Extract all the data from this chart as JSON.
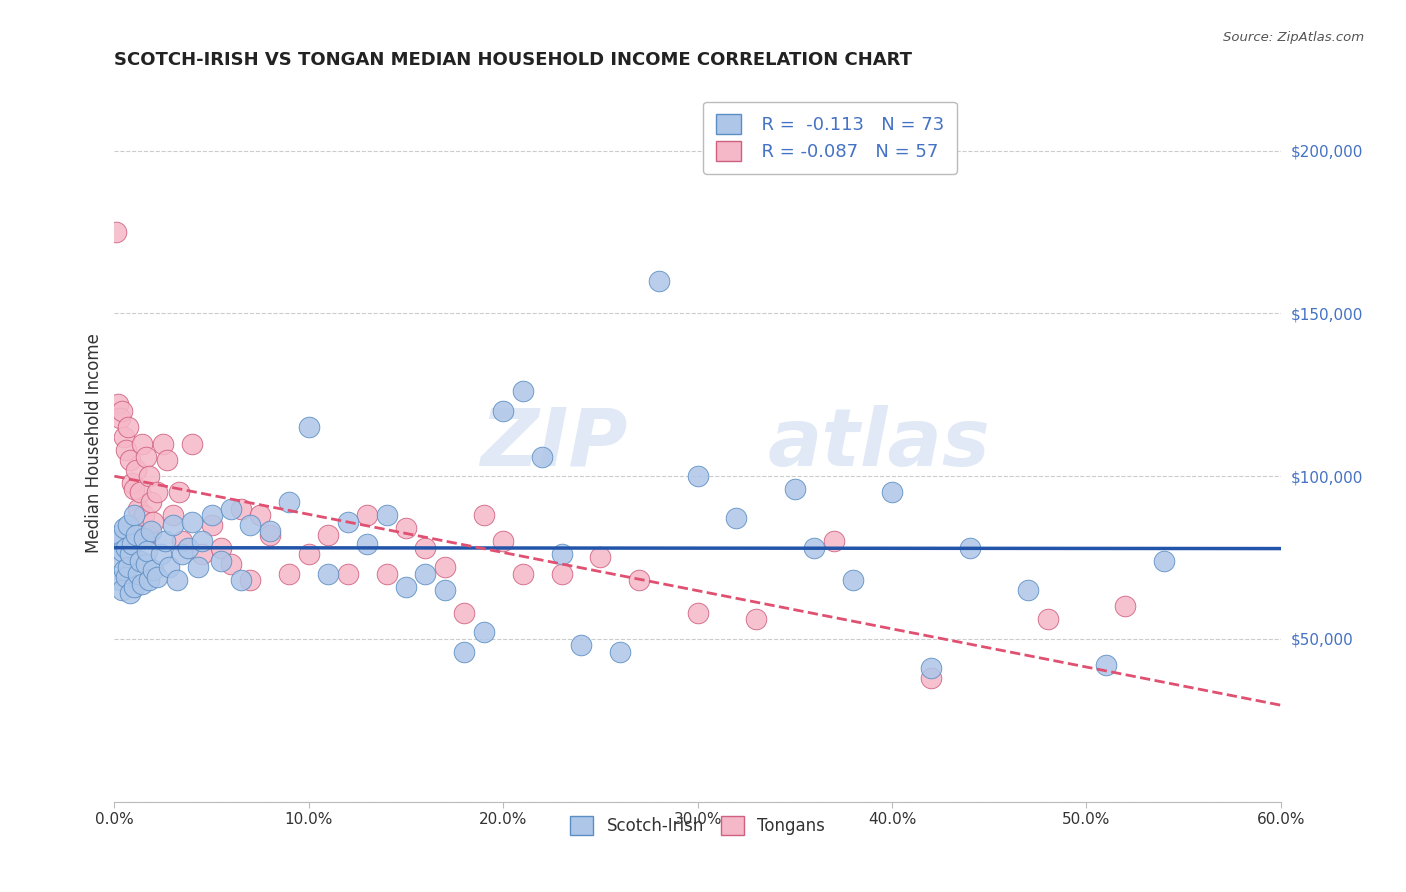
{
  "title": "SCOTCH-IRISH VS TONGAN MEDIAN HOUSEHOLD INCOME CORRELATION CHART",
  "source_text": "Source: ZipAtlas.com",
  "ylabel": "Median Household Income",
  "xlim": [
    0.0,
    0.6
  ],
  "ylim": [
    0,
    220000
  ],
  "yticks": [
    0,
    50000,
    100000,
    150000,
    200000
  ],
  "xtick_labels": [
    "0.0%",
    "10.0%",
    "20.0%",
    "30.0%",
    "40.0%",
    "50.0%",
    "60.0%"
  ],
  "xticks": [
    0.0,
    0.1,
    0.2,
    0.3,
    0.4,
    0.5,
    0.6
  ],
  "scotch_irish_color": "#aec6e8",
  "scotch_irish_edge": "#5b8ec4",
  "tongan_color": "#f5b8c8",
  "tongan_edge": "#d06080",
  "trend_blue_color": "#2255aa",
  "trend_pink_color": "#e05070",
  "watermark_zip": "ZIP",
  "watermark_atlas": "atlas",
  "background_color": "#ffffff",
  "legend_R1": "R = ",
  "legend_V1": "-0.113",
  "legend_N1": "N = ",
  "legend_NV1": "73",
  "legend_R2": "R = ",
  "legend_V2": "-0.087",
  "legend_N2": "N = ",
  "legend_NV2": "57",
  "scotch_irish_x": [
    0.001,
    0.002,
    0.003,
    0.003,
    0.004,
    0.004,
    0.005,
    0.005,
    0.006,
    0.006,
    0.007,
    0.007,
    0.008,
    0.008,
    0.009,
    0.01,
    0.01,
    0.011,
    0.012,
    0.013,
    0.014,
    0.015,
    0.016,
    0.017,
    0.018,
    0.019,
    0.02,
    0.022,
    0.024,
    0.026,
    0.028,
    0.03,
    0.032,
    0.035,
    0.038,
    0.04,
    0.043,
    0.045,
    0.05,
    0.055,
    0.06,
    0.065,
    0.07,
    0.08,
    0.09,
    0.1,
    0.11,
    0.12,
    0.13,
    0.14,
    0.15,
    0.16,
    0.17,
    0.18,
    0.19,
    0.2,
    0.21,
    0.22,
    0.23,
    0.24,
    0.26,
    0.28,
    0.3,
    0.32,
    0.35,
    0.36,
    0.38,
    0.4,
    0.42,
    0.44,
    0.47,
    0.51,
    0.54
  ],
  "scotch_irish_y": [
    80000,
    75000,
    82000,
    68000,
    77000,
    65000,
    84000,
    71000,
    78000,
    69000,
    85000,
    72000,
    76000,
    64000,
    79000,
    88000,
    66000,
    82000,
    70000,
    74000,
    67000,
    81000,
    73000,
    77000,
    68000,
    83000,
    71000,
    69000,
    76000,
    80000,
    72000,
    85000,
    68000,
    76000,
    78000,
    86000,
    72000,
    80000,
    88000,
    74000,
    90000,
    68000,
    85000,
    83000,
    92000,
    115000,
    70000,
    86000,
    79000,
    88000,
    66000,
    70000,
    65000,
    46000,
    52000,
    120000,
    126000,
    106000,
    76000,
    48000,
    46000,
    160000,
    100000,
    87000,
    96000,
    78000,
    68000,
    95000,
    41000,
    78000,
    65000,
    42000,
    74000
  ],
  "tongan_x": [
    0.001,
    0.002,
    0.003,
    0.004,
    0.005,
    0.006,
    0.007,
    0.008,
    0.009,
    0.01,
    0.011,
    0.012,
    0.013,
    0.014,
    0.015,
    0.016,
    0.017,
    0.018,
    0.019,
    0.02,
    0.022,
    0.025,
    0.027,
    0.03,
    0.033,
    0.035,
    0.04,
    0.045,
    0.05,
    0.055,
    0.06,
    0.065,
    0.07,
    0.075,
    0.08,
    0.09,
    0.1,
    0.11,
    0.12,
    0.13,
    0.14,
    0.15,
    0.16,
    0.17,
    0.18,
    0.19,
    0.2,
    0.21,
    0.23,
    0.25,
    0.27,
    0.3,
    0.33,
    0.37,
    0.42,
    0.48,
    0.52
  ],
  "tongan_y": [
    175000,
    122000,
    118000,
    120000,
    112000,
    108000,
    115000,
    105000,
    98000,
    96000,
    102000,
    90000,
    95000,
    110000,
    88000,
    106000,
    82000,
    100000,
    92000,
    86000,
    95000,
    110000,
    105000,
    88000,
    95000,
    80000,
    110000,
    76000,
    85000,
    78000,
    73000,
    90000,
    68000,
    88000,
    82000,
    70000,
    76000,
    82000,
    70000,
    88000,
    70000,
    84000,
    78000,
    72000,
    58000,
    88000,
    80000,
    70000,
    70000,
    75000,
    68000,
    58000,
    56000,
    80000,
    38000,
    56000,
    60000
  ]
}
